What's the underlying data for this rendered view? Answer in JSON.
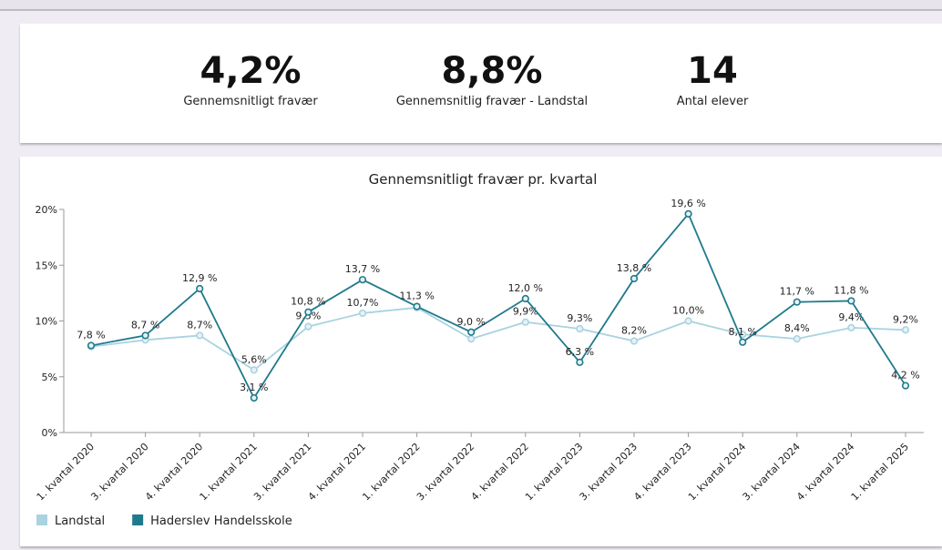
{
  "kpis": [
    {
      "value": "4,2%",
      "label": "Gennemsnitligt fravær"
    },
    {
      "value": "8,8%",
      "label": "Gennemsnitlig fravær - Landstal"
    },
    {
      "value": "14",
      "label": "Antal elever"
    }
  ],
  "chart_data": {
    "type": "line",
    "title": "Gennemsnitligt fravær pr. kvartal",
    "categories": [
      "1. kvartal 2020",
      "3. kvartal 2020",
      "4. kvartal 2020",
      "1. kvartal 2021",
      "3. kvartal 2021",
      "4. kvartal 2021",
      "1. kvartal 2022",
      "3. kvartal 2022",
      "4. kvartal 2022",
      "1. kvartal 2023",
      "3. kvartal 2023",
      "4. kvartal 2023",
      "1. kvartal 2024",
      "3. kvartal 2024",
      "4. kvartal 2024",
      "1. kvartal 2025"
    ],
    "series": [
      {
        "name": "Landstal",
        "color": "#a9d3e0",
        "values": [
          7.7,
          8.3,
          8.7,
          5.6,
          9.5,
          10.7,
          11.2,
          8.4,
          9.9,
          9.3,
          8.2,
          10.0,
          8.8,
          8.4,
          9.4,
          9.2
        ],
        "value_labels": [
          null,
          null,
          "8,7%",
          "5,6%",
          "9,5%",
          "10,7%",
          null,
          null,
          "9,9%",
          "9,3%",
          "8,2%",
          "10,0%",
          null,
          "8,4%",
          "9,4%",
          "9,2%"
        ]
      },
      {
        "name": "Haderslev Handelsskole",
        "color": "#1f7a8c",
        "values": [
          7.8,
          8.7,
          12.9,
          3.1,
          10.8,
          13.7,
          11.3,
          9.0,
          12.0,
          6.3,
          13.8,
          19.6,
          8.1,
          11.7,
          11.8,
          4.2
        ],
        "value_labels": [
          "7,8 %",
          "8,7 %",
          "12,9 %",
          "3,1 %",
          "10,8 %",
          "13,7 %",
          "11,3 %",
          "9,0 %",
          "12,0 %",
          "6,3 %",
          "13,8 %",
          "19,6 %",
          "8,1 %",
          "11,7 %",
          "11,8 %",
          "4,2 %"
        ]
      }
    ],
    "ylim": [
      0,
      20
    ],
    "yticks": [
      {
        "value": 0,
        "label": "0%"
      },
      {
        "value": 5,
        "label": "5%"
      },
      {
        "value": 10,
        "label": "10%"
      },
      {
        "value": 15,
        "label": "15%"
      },
      {
        "value": 20,
        "label": "20%"
      }
    ],
    "legend": "bottom-left"
  }
}
